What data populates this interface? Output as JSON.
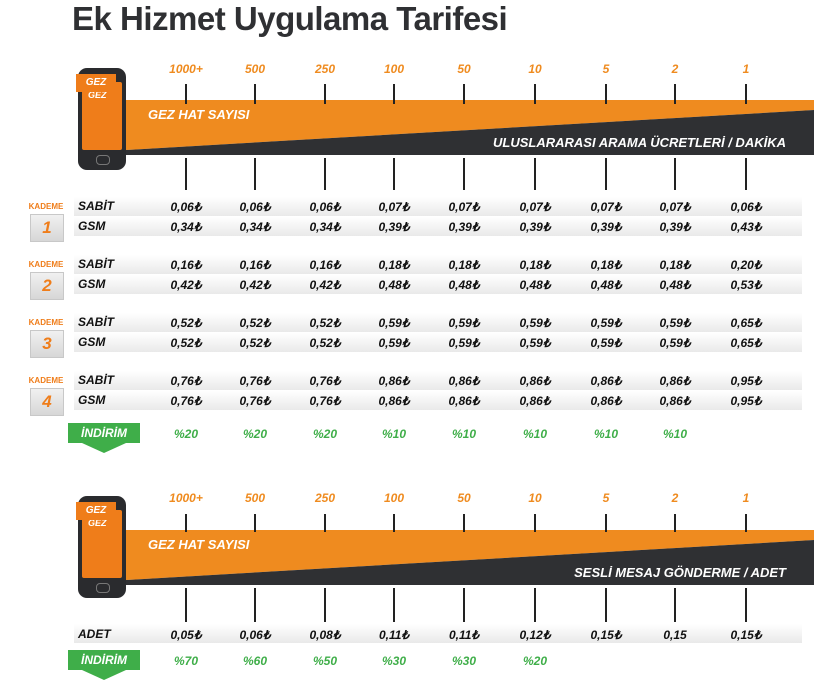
{
  "title": "Ek Hizmet Uygulama Tarifesi",
  "brand_label": "GEZ",
  "colors": {
    "orange": "#ef8b1f",
    "dark": "#2f3033",
    "green": "#3fae49"
  },
  "section1": {
    "headers": [
      "1000+",
      "500",
      "250",
      "100",
      "50",
      "10",
      "5",
      "2",
      "1"
    ],
    "band_top_label": "GEZ HAT SAYISI",
    "band_bottom_label": "ULUSLARARASI ARAMA ÜCRETLERİ / DAKİKA",
    "kademe_label": "KADEME",
    "sabit_label": "SABİT",
    "gsm_label": "GSM",
    "tiers": [
      {
        "number": "1",
        "sabit": [
          "0,06₺",
          "0,06₺",
          "0,06₺",
          "0,07₺",
          "0,07₺",
          "0,07₺",
          "0,07₺",
          "0,07₺",
          "0,06₺"
        ],
        "gsm": [
          "0,34₺",
          "0,34₺",
          "0,34₺",
          "0,39₺",
          "0,39₺",
          "0,39₺",
          "0,39₺",
          "0,39₺",
          "0,43₺"
        ]
      },
      {
        "number": "2",
        "sabit": [
          "0,16₺",
          "0,16₺",
          "0,16₺",
          "0,18₺",
          "0,18₺",
          "0,18₺",
          "0,18₺",
          "0,18₺",
          "0,20₺"
        ],
        "gsm": [
          "0,42₺",
          "0,42₺",
          "0,42₺",
          "0,48₺",
          "0,48₺",
          "0,48₺",
          "0,48₺",
          "0,48₺",
          "0,53₺"
        ]
      },
      {
        "number": "3",
        "sabit": [
          "0,52₺",
          "0,52₺",
          "0,52₺",
          "0,59₺",
          "0,59₺",
          "0,59₺",
          "0,59₺",
          "0,59₺",
          "0,65₺"
        ],
        "gsm": [
          "0,52₺",
          "0,52₺",
          "0,52₺",
          "0,59₺",
          "0,59₺",
          "0,59₺",
          "0,59₺",
          "0,59₺",
          "0,65₺"
        ]
      },
      {
        "number": "4",
        "sabit": [
          "0,76₺",
          "0,76₺",
          "0,76₺",
          "0,86₺",
          "0,86₺",
          "0,86₺",
          "0,86₺",
          "0,86₺",
          "0,95₺"
        ],
        "gsm": [
          "0,76₺",
          "0,76₺",
          "0,76₺",
          "0,86₺",
          "0,86₺",
          "0,86₺",
          "0,86₺",
          "0,86₺",
          "0,95₺"
        ]
      }
    ],
    "discount_label": "İNDİRİM",
    "discounts": [
      "%20",
      "%20",
      "%20",
      "%10",
      "%10",
      "%10",
      "%10",
      "%10",
      ""
    ]
  },
  "section2": {
    "headers": [
      "1000+",
      "500",
      "250",
      "100",
      "50",
      "10",
      "5",
      "2",
      "1"
    ],
    "band_top_label": "GEZ HAT SAYISI",
    "band_bottom_label": "SESLİ MESAJ GÖNDERME / ADET",
    "adet_label": "ADET",
    "adet": [
      "0,05₺",
      "0,06₺",
      "0,08₺",
      "0,11₺",
      "0,11₺",
      "0,12₺",
      "0,15₺",
      "0,15",
      "0,15₺"
    ],
    "discount_label": "İNDİRİM",
    "discounts": [
      "%70",
      "%60",
      "%50",
      "%30",
      "%30",
      "%20",
      "",
      "",
      ""
    ]
  }
}
